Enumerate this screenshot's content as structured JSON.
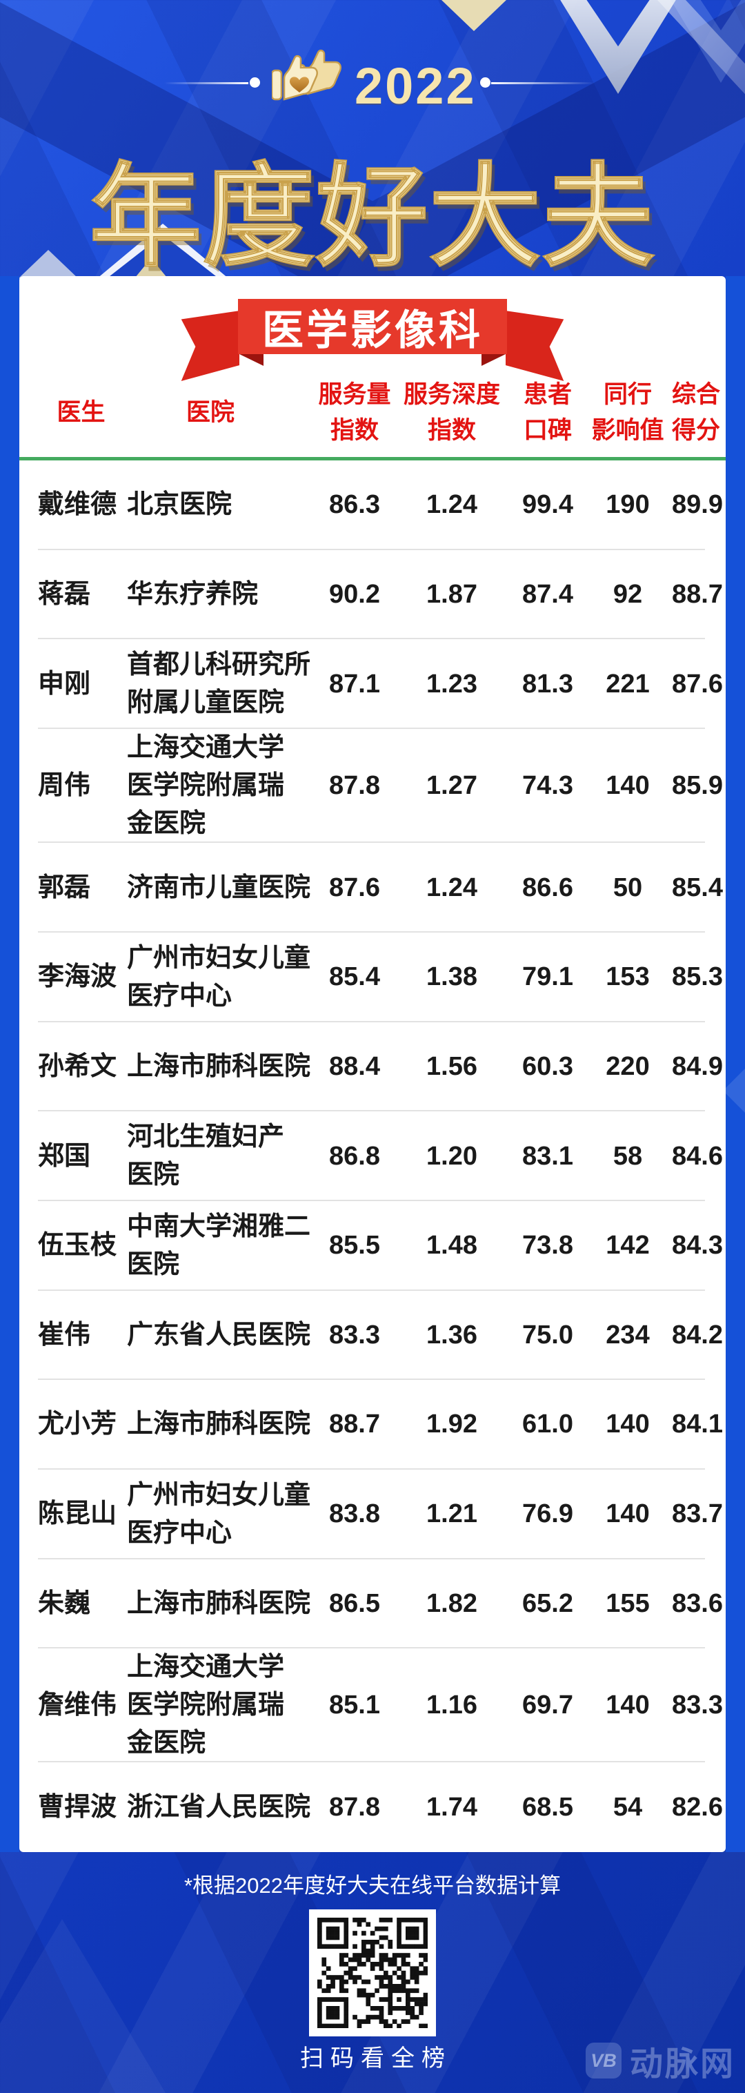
{
  "page": {
    "background_color": "#1643cc",
    "accent_red": "#e6392b",
    "accent_green": "#44aa5f",
    "accent_gold": "#f9eec6"
  },
  "header": {
    "year": "2022",
    "title": "年度好大夫",
    "thumbs_icon": "thumbs-up-heart-icon"
  },
  "ribbon": {
    "label": "医学影像科"
  },
  "chart_data": {
    "type": "table",
    "title": "2022 年度好大夫 — 医学影像科",
    "columns": [
      "医生",
      "医院",
      "服务量指数",
      "服务深度指数",
      "患者口碑",
      "同行影响值",
      "综合得分"
    ],
    "column_header_lines": [
      [
        "医生"
      ],
      [
        "医院"
      ],
      [
        "服务量",
        "指数"
      ],
      [
        "服务深度",
        "指数"
      ],
      [
        "患者",
        "口碑"
      ],
      [
        "同行",
        "影响值"
      ],
      [
        "综合",
        "得分"
      ]
    ],
    "rows": [
      [
        "戴维德",
        "北京医院",
        "86.3",
        "1.24",
        "99.4",
        "190",
        "89.9"
      ],
      [
        "蒋磊",
        "华东疗养院",
        "90.2",
        "1.87",
        "87.4",
        "92",
        "88.7"
      ],
      [
        "申刚",
        "首都儿科研究所\n附属儿童医院",
        "87.1",
        "1.23",
        "81.3",
        "221",
        "87.6"
      ],
      [
        "周伟",
        "上海交通大学\n医学院附属瑞\n金医院",
        "87.8",
        "1.27",
        "74.3",
        "140",
        "85.9"
      ],
      [
        "郭磊",
        "济南市儿童医院",
        "87.6",
        "1.24",
        "86.6",
        "50",
        "85.4"
      ],
      [
        "李海波",
        "广州市妇女儿童\n医疗中心",
        "85.4",
        "1.38",
        "79.1",
        "153",
        "85.3"
      ],
      [
        "孙希文",
        "上海市肺科医院",
        "88.4",
        "1.56",
        "60.3",
        "220",
        "84.9"
      ],
      [
        "郑国",
        "河北生殖妇产\n医院",
        "86.8",
        "1.20",
        "83.1",
        "58",
        "84.6"
      ],
      [
        "伍玉枝",
        "中南大学湘雅二\n医院",
        "85.5",
        "1.48",
        "73.8",
        "142",
        "84.3"
      ],
      [
        "崔伟",
        "广东省人民医院",
        "83.3",
        "1.36",
        "75.0",
        "234",
        "84.2"
      ],
      [
        "尤小芳",
        "上海市肺科医院",
        "88.7",
        "1.92",
        "61.0",
        "140",
        "84.1"
      ],
      [
        "陈昆山",
        "广州市妇女儿童\n医疗中心",
        "83.8",
        "1.21",
        "76.9",
        "140",
        "83.7"
      ],
      [
        "朱巍",
        "上海市肺科医院",
        "86.5",
        "1.82",
        "65.2",
        "155",
        "83.6"
      ],
      [
        "詹维伟",
        "上海交通大学\n医学院附属瑞\n金医院",
        "85.1",
        "1.16",
        "69.7",
        "140",
        "83.3"
      ],
      [
        "曹捍波",
        "浙江省人民医院",
        "87.8",
        "1.74",
        "68.5",
        "54",
        "82.6"
      ]
    ]
  },
  "footer": {
    "note": "*根据2022年度好大夫在线平台数据计算",
    "qr_caption": "扫码看全榜"
  },
  "watermark": {
    "logo_text": "VB",
    "brand": "动脉网"
  }
}
